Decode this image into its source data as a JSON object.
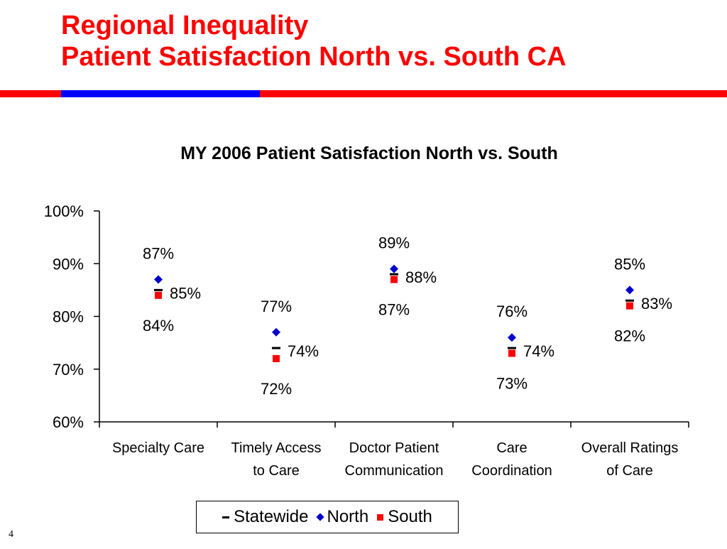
{
  "slide": {
    "title_line1": "Regional Inequality",
    "title_line2": "Patient Satisfaction North vs. South CA",
    "page_number": "4",
    "colors": {
      "title": "#ff0000",
      "rule_red": "#ff0000",
      "rule_blue": "#0000ff"
    }
  },
  "chart_data": {
    "type": "scatter",
    "title": "MY 2006 Patient Satisfaction North vs. South",
    "xlabel": "",
    "ylabel": "",
    "ylim": [
      60,
      100
    ],
    "yticks": [
      100,
      90,
      80,
      70,
      60
    ],
    "ytick_labels": [
      "100%",
      "90%",
      "80%",
      "70%",
      "60%"
    ],
    "categories": [
      [
        "Specialty Care",
        ""
      ],
      [
        "Timely Access",
        "to Care"
      ],
      [
        "Doctor Patient",
        "Communication"
      ],
      [
        "Care",
        "Coordination"
      ],
      [
        "Overall Ratings",
        "of Care"
      ]
    ],
    "series": [
      {
        "name": "Statewide",
        "marker": "dash",
        "color": "#000000",
        "values": [
          85,
          74,
          88,
          74,
          83
        ],
        "labels": [
          "85%",
          "74%",
          "88%",
          "74%",
          "83%"
        ]
      },
      {
        "name": "North",
        "marker": "diamond",
        "color": "#0000cc",
        "values": [
          87,
          77,
          89,
          76,
          85
        ],
        "labels": [
          "87%",
          "77%",
          "89%",
          "76%",
          "85%"
        ]
      },
      {
        "name": "South",
        "marker": "square",
        "color": "#ff0000",
        "values": [
          84,
          72,
          87,
          73,
          82
        ],
        "labels": [
          "84%",
          "72%",
          "87%",
          "73%",
          "82%"
        ]
      }
    ],
    "grid": false,
    "legend_position": "bottom"
  }
}
